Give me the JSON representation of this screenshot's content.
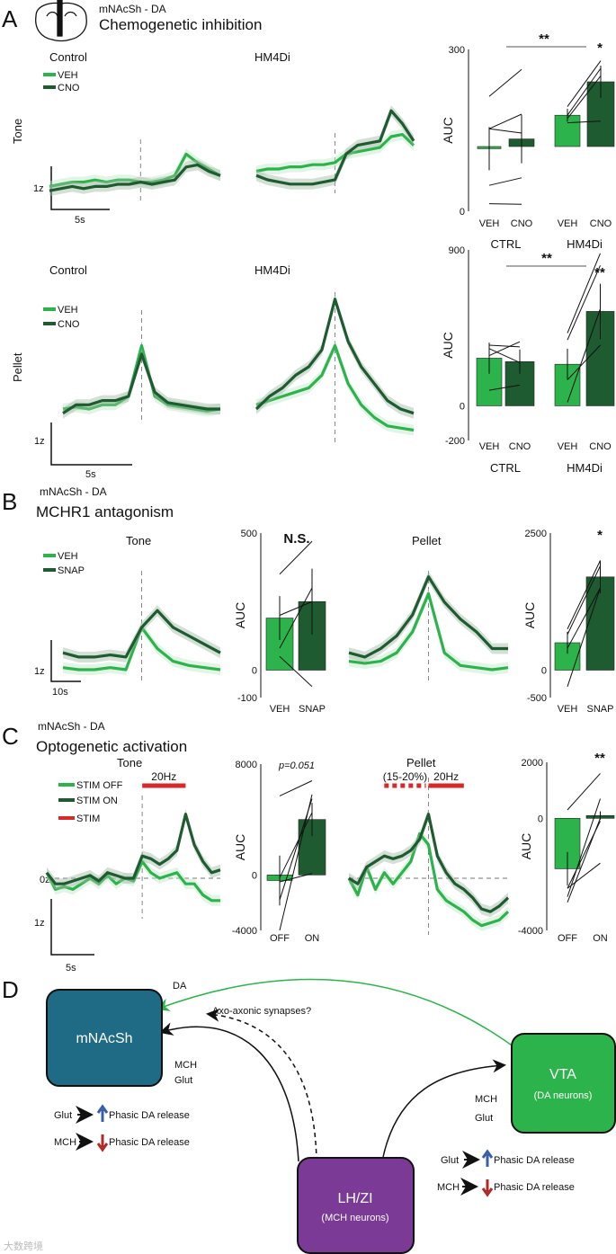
{
  "colors": {
    "veh": "#2db34b",
    "drug": "#1e5b30",
    "stim": "#d62a2a",
    "nacc": "#1f6a84",
    "vta": "#2db34b",
    "lhzi": "#7b3a96",
    "up": "#3a5fa8",
    "down": "#b02a2a"
  },
  "panels": {
    "A": {
      "letter": "A",
      "region": "mNAcSh - DA",
      "title": "Chemogenetic inhibition",
      "row_tone": "Tone",
      "row_pellet": "Pellet",
      "col_control": "Control",
      "col_hm4di": "HM4Di",
      "legend": [
        "VEH",
        "CNO"
      ],
      "scale_y": "1z",
      "scale_x": "5s"
    },
    "B": {
      "letter": "B",
      "region": "mNAcSh - DA",
      "title": "MCHR1 antagonism",
      "col_tone": "Tone",
      "col_pellet": "Pellet",
      "legend": [
        "VEH",
        "SNAP"
      ],
      "scale_y": "1z",
      "scale_x": "10s"
    },
    "C": {
      "letter": "C",
      "region": "mNAcSh - DA",
      "title": "Optogenetic activation",
      "col_tone": "Tone",
      "col_pellet": "Pellet",
      "legend": [
        "STIM OFF",
        "STIM ON",
        "STIM"
      ],
      "stim_tone": "20Hz",
      "stim_pellet_pre": "(15-20%)",
      "stim_pellet_post": "20Hz",
      "zero": "0z",
      "scale_y": "1z",
      "scale_x": "5s"
    },
    "D": {
      "letter": "D",
      "nacc": "mNAcSh",
      "vta": "VTA",
      "vta_sub": "(DA neurons)",
      "lhzi": "LH/ZI",
      "lhzi_sub": "(MCH neurons)",
      "da": "DA",
      "axo": "Axo-axonic synapses?",
      "mch": "MCH",
      "glut": "Glut",
      "glut_effect": "Glut",
      "mch_effect": "MCH",
      "release": "Phasic DA release"
    }
  },
  "watermark": "大数跨境",
  "chart_data": [
    {
      "type": "line",
      "title": "Control",
      "row": "Tone",
      "x_range": [
        -8,
        7
      ],
      "series": [
        {
          "name": "VEH",
          "values": [
            -0.05,
            0,
            0.05,
            0.05,
            0.1,
            0.05,
            0.1,
            0.1,
            0.05,
            0.05,
            0.1,
            0.2,
            0.7,
            0.5,
            0.35,
            0.2
          ]
        },
        {
          "name": "CNO",
          "values": [
            -0.15,
            -0.1,
            -0.05,
            -0.1,
            -0.05,
            -0.05,
            0,
            0,
            0.05,
            0,
            0.05,
            0.1,
            0.4,
            0.45,
            0.3,
            0.2
          ]
        }
      ]
    },
    {
      "type": "line",
      "title": "HM4Di",
      "row": "Tone",
      "x_range": [
        -7,
        7
      ],
      "series": [
        {
          "name": "VEH",
          "values": [
            0.2,
            0.25,
            0.25,
            0.3,
            0.3,
            0.35,
            0.35,
            0.4,
            0.6,
            0.65,
            0.7,
            0.75,
            1.0,
            1.05,
            0.8
          ]
        },
        {
          "name": "CNO",
          "values": [
            0.1,
            0,
            -0.05,
            -0.1,
            -0.1,
            -0.1,
            -0.05,
            0,
            0.6,
            0.8,
            0.85,
            0.9,
            1.6,
            1.3,
            0.9
          ]
        }
      ]
    },
    {
      "type": "bar",
      "ylabel": "AUC",
      "ylim": [
        0,
        300
      ],
      "yticks": [
        300,
        0
      ],
      "baseline": 120,
      "categories": [
        "VEH",
        "CNO",
        "VEH",
        "CNO"
      ],
      "groups": [
        "CTRL",
        "HM4Di"
      ],
      "values": [
        116,
        134,
        178,
        240
      ],
      "errors": [
        40,
        45,
        12,
        30
      ],
      "paired": [
        [
          [
            213,
            263
          ],
          [
            153,
            180
          ],
          [
            153,
            145
          ],
          [
            48,
            62
          ],
          [
            14,
            13
          ]
        ],
        [
          [
            194,
            279
          ],
          [
            178,
            265
          ],
          [
            172,
            251
          ],
          [
            164,
            167
          ]
        ]
      ],
      "significance": [
        "**",
        "*"
      ]
    },
    {
      "type": "line",
      "title": "Control",
      "row": "Pellet",
      "x_range": [
        -6,
        6
      ],
      "series": [
        {
          "name": "VEH",
          "values": [
            0,
            0.05,
            0,
            0.1,
            0.1,
            0.3,
            1.5,
            0.3,
            0.1,
            0.05,
            0,
            -0.05,
            0
          ]
        },
        {
          "name": "CNO",
          "values": [
            -0.1,
            0.1,
            0.1,
            0.2,
            0.2,
            0.3,
            1.3,
            0.4,
            0.15,
            0.1,
            0.05,
            0,
            0
          ]
        }
      ]
    },
    {
      "type": "line",
      "title": "HM4Di",
      "row": "Pellet",
      "x_range": [
        -6,
        6
      ],
      "series": [
        {
          "name": "VEH",
          "values": [
            0.1,
            0.2,
            0.3,
            0.4,
            0.5,
            0.8,
            1.5,
            0.6,
            0.1,
            -0.2,
            -0.4,
            -0.45,
            -0.5
          ]
        },
        {
          "name": "CNO",
          "values": [
            0,
            0.3,
            0.5,
            0.8,
            1.0,
            1.4,
            2.6,
            1.6,
            1.0,
            0.6,
            0.2,
            0,
            -0.1
          ]
        }
      ]
    },
    {
      "type": "bar",
      "ylabel": "AUC",
      "ylim": [
        -200,
        900
      ],
      "yticks": [
        900,
        0,
        -200
      ],
      "baseline": 0,
      "categories": [
        "VEH",
        "CNO",
        "VEH",
        "CNO"
      ],
      "groups": [
        "CTRL",
        "HM4Di"
      ],
      "values": [
        275,
        255,
        240,
        545
      ],
      "errors": [
        90,
        70,
        90,
        160
      ],
      "paired": [
        [
          [
            350,
            340
          ],
          [
            330,
            250
          ],
          [
            290,
            370
          ],
          [
            90,
            120
          ]
        ],
        [
          [
            420,
            880
          ],
          [
            380,
            810
          ],
          [
            20,
            560
          ],
          [
            150,
            350
          ]
        ]
      ],
      "significance": [
        "**",
        "**"
      ]
    },
    {
      "type": "line",
      "title": "Tone",
      "x_range": [
        -25,
        25
      ],
      "series": [
        {
          "name": "VEH",
          "values": [
            0.05,
            0,
            0,
            0.05,
            0,
            1.0,
            0.5,
            0.2,
            0.1,
            0.05,
            0
          ]
        },
        {
          "name": "SNAP",
          "values": [
            0.4,
            0.3,
            0.3,
            0.35,
            0.3,
            1.0,
            1.4,
            1.0,
            0.8,
            0.6,
            0.4
          ]
        }
      ]
    },
    {
      "type": "bar",
      "ylabel": "AUC",
      "ylim": [
        -100,
        500
      ],
      "yticks": [
        500,
        0,
        -100
      ],
      "baseline": 0,
      "categories": [
        "VEH",
        "SNAP"
      ],
      "values": [
        190,
        250
      ],
      "errors": [
        80,
        120
      ],
      "paired": [
        [
          [
            350,
            470
          ],
          [
            80,
            300
          ],
          [
            200,
            250
          ],
          [
            50,
            -60
          ]
        ]
      ],
      "significance": [
        "N.S."
      ]
    },
    {
      "type": "line",
      "title": "Pellet",
      "x_range": [
        -25,
        25
      ],
      "series": [
        {
          "name": "VEH",
          "values": [
            0.2,
            0.15,
            0.2,
            0.4,
            0.9,
            1.8,
            0.4,
            0.1,
            0.05,
            0,
            0.05
          ]
        },
        {
          "name": "SNAP",
          "values": [
            0.4,
            0.3,
            0.5,
            0.8,
            1.3,
            2.2,
            1.6,
            1.2,
            0.9,
            0.5,
            0.5
          ]
        }
      ]
    },
    {
      "type": "bar",
      "ylabel": "AUC",
      "ylim": [
        -500,
        2500
      ],
      "yticks": [
        2500,
        0,
        -500
      ],
      "baseline": 0,
      "categories": [
        "VEH",
        "SNAP"
      ],
      "values": [
        500,
        1700
      ],
      "errors": [
        200,
        300
      ],
      "paired": [
        [
          [
            750,
            2000
          ],
          [
            650,
            1900
          ],
          [
            400,
            1500
          ],
          [
            -300,
            1500
          ]
        ]
      ],
      "significance": [
        "*"
      ]
    },
    {
      "type": "line",
      "title": "Tone",
      "x_range": [
        -11,
        9
      ],
      "stim": {
        "label": "20Hz",
        "from": 0,
        "to": 5
      },
      "series": [
        {
          "name": "STIM OFF",
          "values": [
            0.1,
            -0.2,
            -0.15,
            -0.2,
            -0.1,
            0,
            -0.1,
            0.05,
            -0.1,
            0,
            -0.05,
            0.3,
            0.1,
            0,
            0.05,
            0.1,
            -0.1,
            -0.1,
            -0.3,
            -0.4,
            -0.4
          ]
        },
        {
          "name": "STIM ON",
          "values": [
            0.1,
            -0.1,
            -0.1,
            -0.05,
            0,
            0.05,
            -0.05,
            0.1,
            0.05,
            0,
            0,
            0.4,
            0.35,
            0.25,
            0.35,
            0.5,
            1.15,
            0.6,
            0.3,
            0.1,
            0.15
          ]
        }
      ]
    },
    {
      "type": "bar",
      "ylabel": "AUC",
      "ylim": [
        -4000,
        8000
      ],
      "yticks": [
        8000,
        0,
        -4000
      ],
      "baseline": 0,
      "categories": [
        "OFF",
        "ON"
      ],
      "values": [
        -400,
        4000
      ],
      "errors": [
        1800,
        1200
      ],
      "paired": [
        [
          [
            5700,
            6800
          ],
          [
            -200,
            4500
          ],
          [
            -1800,
            5500
          ],
          [
            -4000,
            5800
          ],
          [
            -500,
            100
          ]
        ]
      ],
      "significance": [
        "p=0.051"
      ]
    },
    {
      "type": "line",
      "title": "Pellet",
      "x_range": [
        -9,
        9
      ],
      "stim": {
        "pre_label": "(15-20%)",
        "label": "20Hz",
        "pre_from": -5,
        "pre_to": -0.3,
        "from": 0,
        "to": 4
      },
      "series": [
        {
          "name": "STIM OFF",
          "values": [
            0,
            -0.3,
            0.2,
            -0.2,
            0.1,
            -0.1,
            0.1,
            0.3,
            0.8,
            0.6,
            -0.2,
            -0.4,
            -0.5,
            -0.6,
            -0.75,
            -0.85,
            -0.8,
            -0.75,
            -0.6
          ]
        },
        {
          "name": "STIM ON",
          "values": [
            0,
            -0.1,
            0.2,
            0.3,
            0.4,
            0.35,
            0.4,
            0.5,
            0.7,
            1.15,
            0.4,
            0.1,
            -0.1,
            -0.2,
            -0.35,
            -0.55,
            -0.6,
            -0.5,
            -0.35
          ]
        }
      ]
    },
    {
      "type": "bar",
      "ylabel": "AUC",
      "ylim": [
        -4000,
        2000
      ],
      "yticks": [
        2000,
        0,
        -4000
      ],
      "baseline": 0,
      "categories": [
        "OFF",
        "ON"
      ],
      "values": [
        -1800,
        100
      ],
      "errors": [
        600,
        150
      ],
      "paired": [
        [
          [
            300,
            1600
          ],
          [
            -2800,
            700
          ],
          [
            -2500,
            -100
          ],
          [
            -3000,
            0
          ],
          [
            -2500,
            -1600
          ]
        ]
      ],
      "significance": [
        "**"
      ]
    }
  ]
}
